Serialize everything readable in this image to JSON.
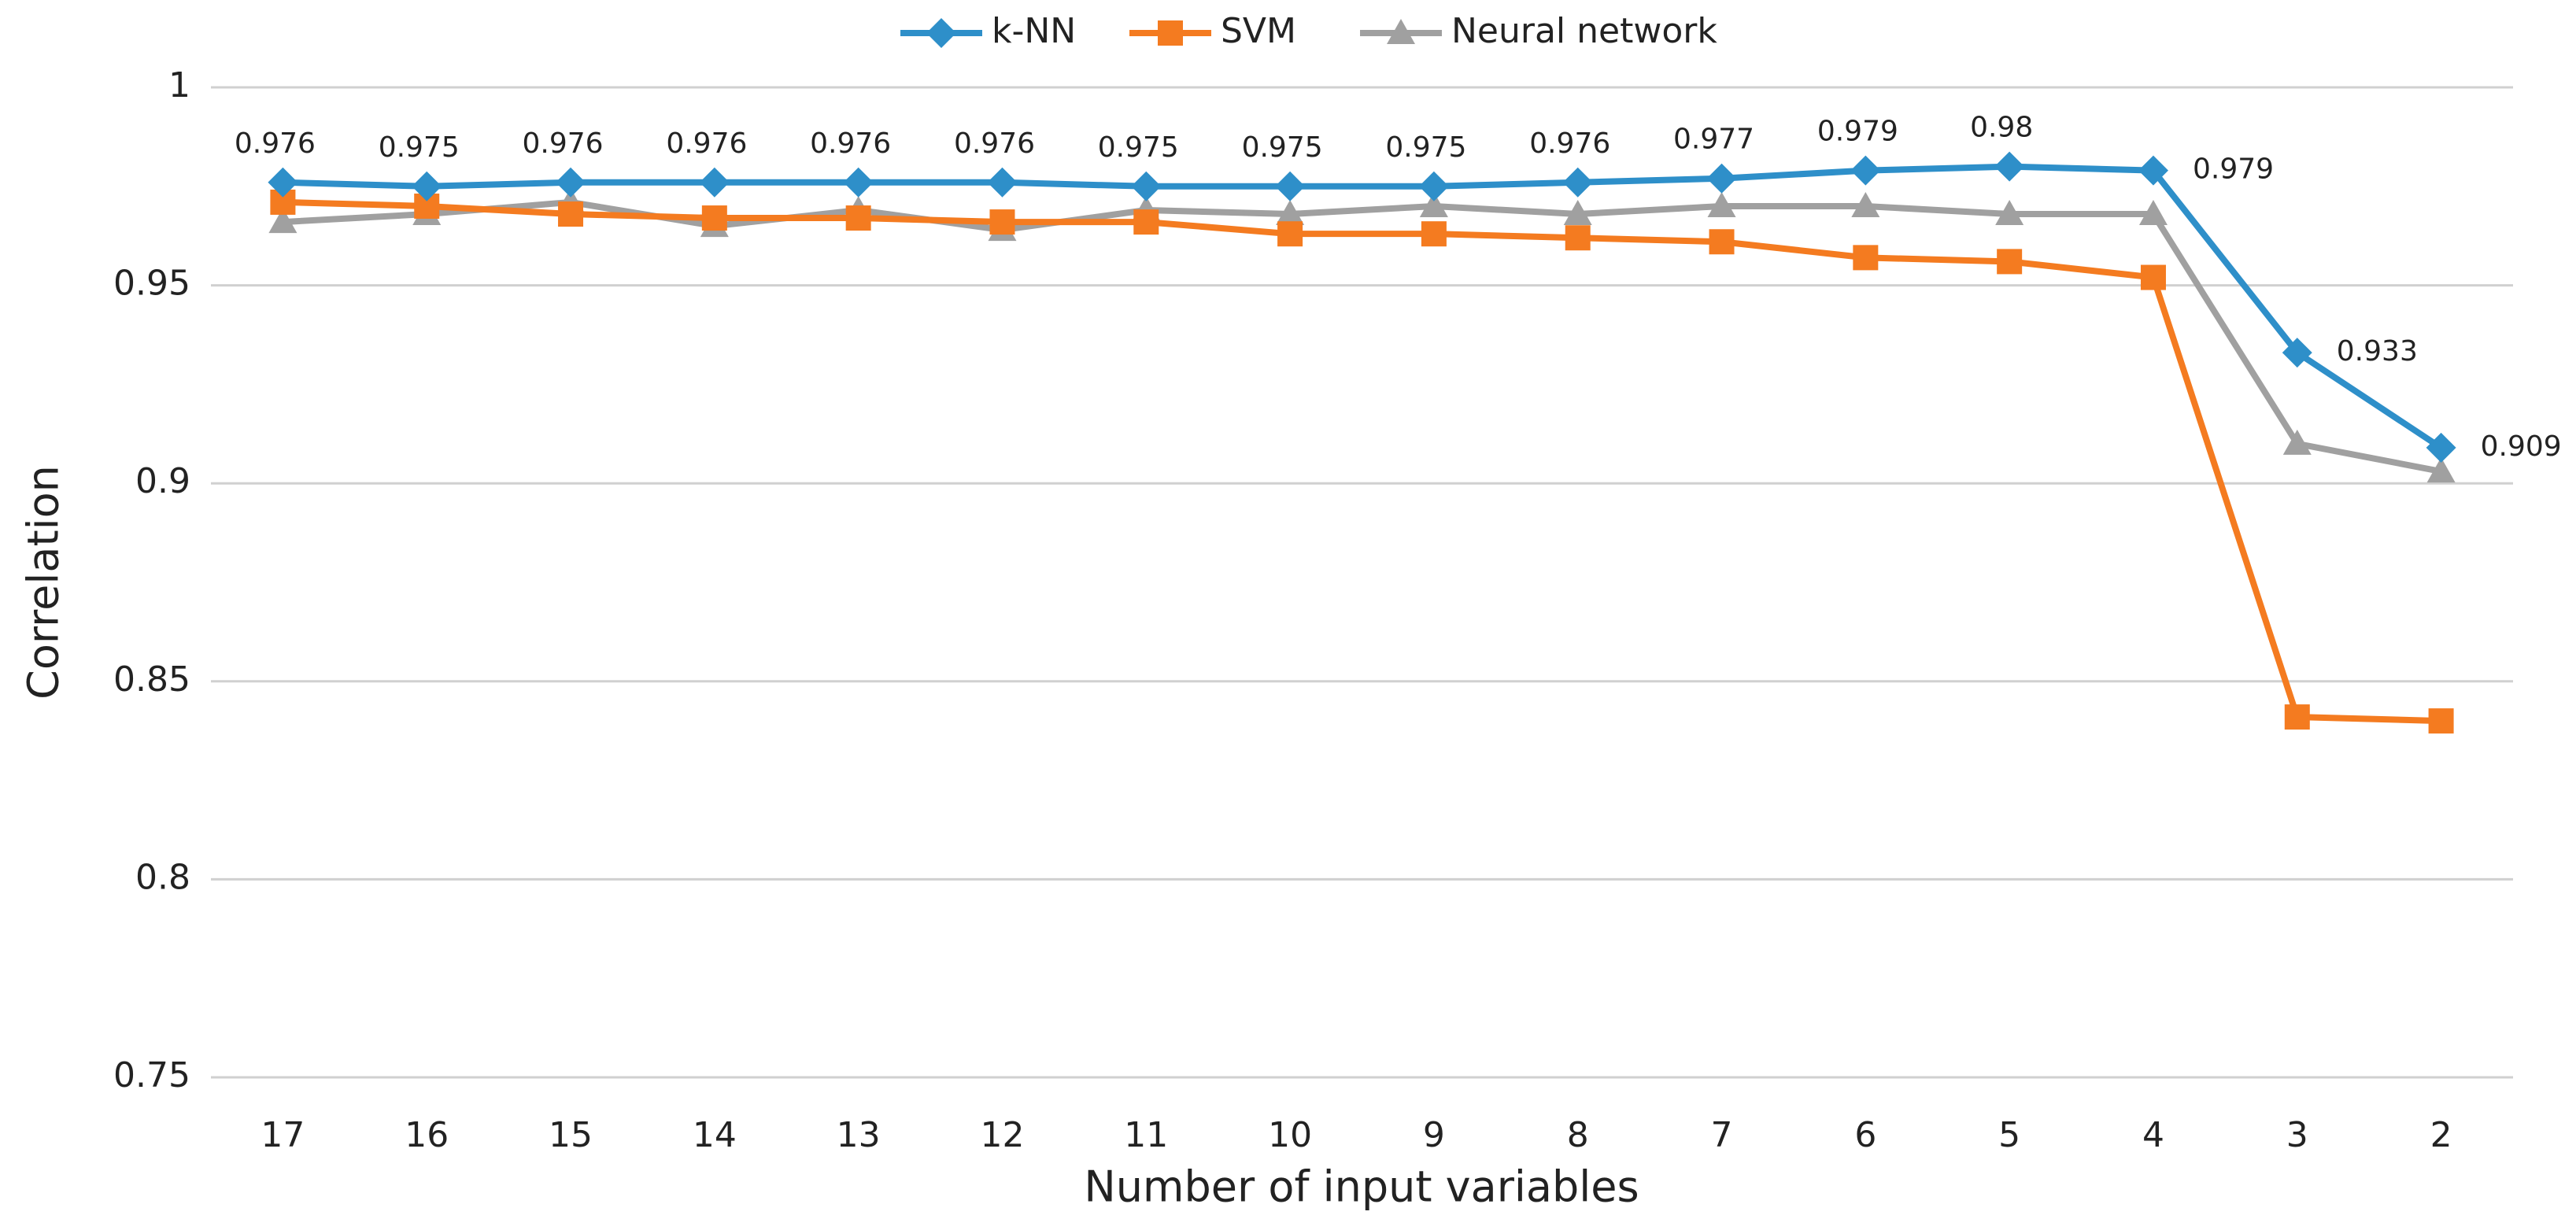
{
  "chart_data": {
    "type": "line",
    "x_label": "Number of input variables",
    "y_label": "Correlation",
    "categories": [
      "17",
      "16",
      "15",
      "14",
      "13",
      "12",
      "11",
      "10",
      "9",
      "8",
      "7",
      "6",
      "5",
      "4",
      "3",
      "2"
    ],
    "series": [
      {
        "name": "k-NN",
        "color": "#2e8fc9",
        "marker": "diamond",
        "values": [
          0.976,
          0.975,
          0.976,
          0.976,
          0.976,
          0.976,
          0.975,
          0.975,
          0.975,
          0.976,
          0.977,
          0.979,
          0.98,
          0.979,
          0.933,
          0.909
        ],
        "data_labels": true
      },
      {
        "name": "SVM",
        "color": "#f47b20",
        "marker": "square",
        "values": [
          0.971,
          0.97,
          0.968,
          0.967,
          0.967,
          0.966,
          0.966,
          0.963,
          0.963,
          0.962,
          0.961,
          0.957,
          0.956,
          0.952,
          0.841,
          0.84
        ],
        "data_labels": false
      },
      {
        "name": "Neural network",
        "color": "#a0a0a0",
        "marker": "triangle",
        "values": [
          0.966,
          0.968,
          0.971,
          0.965,
          0.969,
          0.964,
          0.969,
          0.968,
          0.97,
          0.968,
          0.97,
          0.97,
          0.968,
          0.968,
          0.91,
          0.903
        ],
        "data_labels": false
      }
    ],
    "ylim": [
      0.75,
      1
    ],
    "yticks": [
      0.75,
      0.8,
      0.85,
      0.9,
      0.95,
      1
    ],
    "grid": true,
    "legend": "top"
  }
}
